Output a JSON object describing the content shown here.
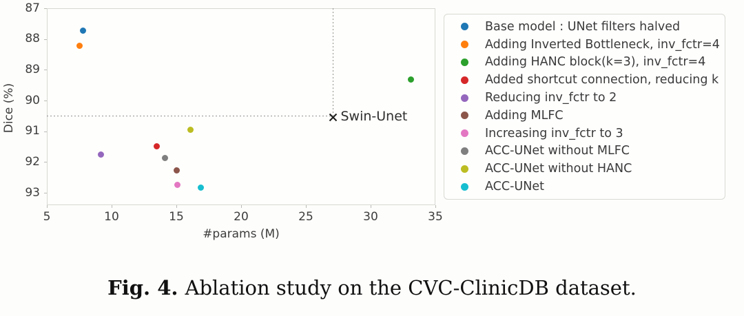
{
  "figure": {
    "caption": {
      "label": "Fig. 4.",
      "text": "Ablation study on the CVC-ClinicDB dataset."
    }
  },
  "chart_data": {
    "type": "scatter",
    "title": "",
    "xlabel": "#params (M)",
    "ylabel": "Dice (%)",
    "xlim": [
      5,
      35
    ],
    "ylim": [
      87,
      93.4
    ],
    "y_axis_inverted": true,
    "xticks": [
      5,
      10,
      15,
      20,
      25,
      30,
      35
    ],
    "yticks": [
      87,
      88,
      89,
      90,
      91,
      92,
      93
    ],
    "grid": false,
    "legend_position": "outside-right",
    "series": [
      {
        "name": "Base model : UNet filters halved",
        "color": "#1f77b4",
        "points": [
          [
            7.8,
            87.72
          ]
        ]
      },
      {
        "name": "Adding Inverted Bottleneck, inv_fctr=4",
        "color": "#ff7f0e",
        "points": [
          [
            7.55,
            88.23
          ]
        ]
      },
      {
        "name": "Adding HANC block(k=3), inv_fctr=4",
        "color": "#2ca02c",
        "points": [
          [
            33.1,
            89.32
          ]
        ]
      },
      {
        "name": "Added shortcut connection, reducing k",
        "color": "#d62728",
        "points": [
          [
            13.5,
            91.49
          ]
        ]
      },
      {
        "name": "Reducing inv_fctr to 2",
        "color": "#9467bd",
        "points": [
          [
            9.15,
            91.75
          ]
        ]
      },
      {
        "name": "Adding MLFC",
        "color": "#8c564b",
        "points": [
          [
            15.0,
            92.28
          ]
        ]
      },
      {
        "name": "Increasing inv_fctr to 3",
        "color": "#e377c2",
        "points": [
          [
            15.1,
            92.75
          ]
        ]
      },
      {
        "name": "ACC-UNet without MLFC",
        "color": "#7f7f7f",
        "points": [
          [
            14.1,
            91.87
          ]
        ]
      },
      {
        "name": "ACC-UNet without HANC",
        "color": "#bcbd22",
        "points": [
          [
            16.1,
            90.94
          ]
        ]
      },
      {
        "name": "ACC-UNet",
        "color": "#17becf",
        "points": [
          [
            16.9,
            92.82
          ]
        ]
      }
    ],
    "annotations": [
      {
        "label": "Swin-Unet",
        "marker": "x",
        "color": "#1c1c1c",
        "x": 27.1,
        "y": 90.5,
        "guide_lines": [
          "vertical-from-top",
          "horizontal-from-left-axis"
        ],
        "guide_color": "#8f8f8b"
      }
    ]
  }
}
